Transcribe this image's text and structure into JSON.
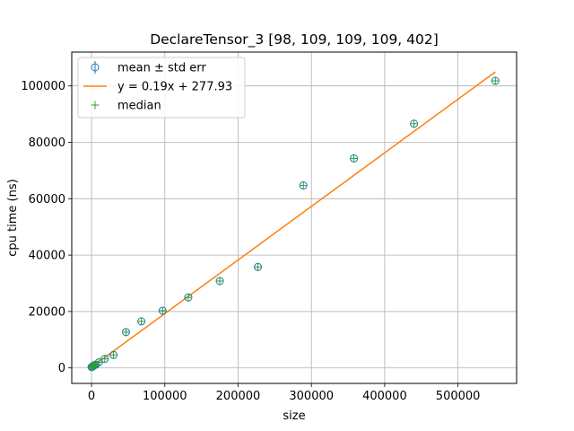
{
  "chart_data": {
    "type": "scatter",
    "title": "DeclareTensor_3 [98, 109, 109, 109, 402]",
    "xlabel": "size",
    "ylabel": "cpu time (ns)",
    "xlim": [
      -27000,
      580000
    ],
    "ylim": [
      -5500,
      112000
    ],
    "xticks": [
      0,
      100000,
      200000,
      300000,
      400000,
      500000
    ],
    "yticks": [
      0,
      20000,
      40000,
      60000,
      80000,
      100000
    ],
    "grid": true,
    "legend_position": "top-left",
    "legend": [
      {
        "label": "mean ± std err",
        "marker": "errorbar-circle",
        "color": "#1f77b4"
      },
      {
        "label": "y = 0.19x + 277.93",
        "marker": "line",
        "color": "#ff7f0e"
      },
      {
        "label": "median",
        "marker": "plus",
        "color": "#2ca02c"
      }
    ],
    "series": [
      {
        "name": "mean ± std err",
        "color": "#1f77b4",
        "points": [
          {
            "x": 98,
            "y": 300
          },
          {
            "x": 1200,
            "y": 500
          },
          {
            "x": 2500,
            "y": 700
          },
          {
            "x": 4000,
            "y": 1000
          },
          {
            "x": 6000,
            "y": 1200
          },
          {
            "x": 10000,
            "y": 2000
          },
          {
            "x": 18000,
            "y": 3200
          },
          {
            "x": 30000,
            "y": 4600
          },
          {
            "x": 47000,
            "y": 12700
          },
          {
            "x": 68000,
            "y": 16500
          },
          {
            "x": 97000,
            "y": 20300
          },
          {
            "x": 132000,
            "y": 25000
          },
          {
            "x": 175000,
            "y": 30800
          },
          {
            "x": 227000,
            "y": 35800
          },
          {
            "x": 289000,
            "y": 64700
          },
          {
            "x": 358000,
            "y": 74300
          },
          {
            "x": 440000,
            "y": 86600
          },
          {
            "x": 551000,
            "y": 101800
          }
        ]
      },
      {
        "name": "median",
        "color": "#2ca02c",
        "points": [
          {
            "x": 98,
            "y": 300
          },
          {
            "x": 1200,
            "y": 500
          },
          {
            "x": 2500,
            "y": 700
          },
          {
            "x": 4000,
            "y": 1000
          },
          {
            "x": 6000,
            "y": 1200
          },
          {
            "x": 10000,
            "y": 2000
          },
          {
            "x": 18000,
            "y": 3200
          },
          {
            "x": 30000,
            "y": 4600
          },
          {
            "x": 47000,
            "y": 12700
          },
          {
            "x": 68000,
            "y": 16500
          },
          {
            "x": 97000,
            "y": 20300
          },
          {
            "x": 132000,
            "y": 25000
          },
          {
            "x": 175000,
            "y": 30800
          },
          {
            "x": 227000,
            "y": 35800
          },
          {
            "x": 289000,
            "y": 64700
          },
          {
            "x": 358000,
            "y": 74300
          },
          {
            "x": 440000,
            "y": 86600
          },
          {
            "x": 551000,
            "y": 101800
          }
        ]
      }
    ],
    "fit_line": {
      "name": "y = 0.19x + 277.93",
      "color": "#ff7f0e",
      "slope": 0.19,
      "intercept": 277.93,
      "x_range": [
        98,
        551000
      ]
    }
  }
}
